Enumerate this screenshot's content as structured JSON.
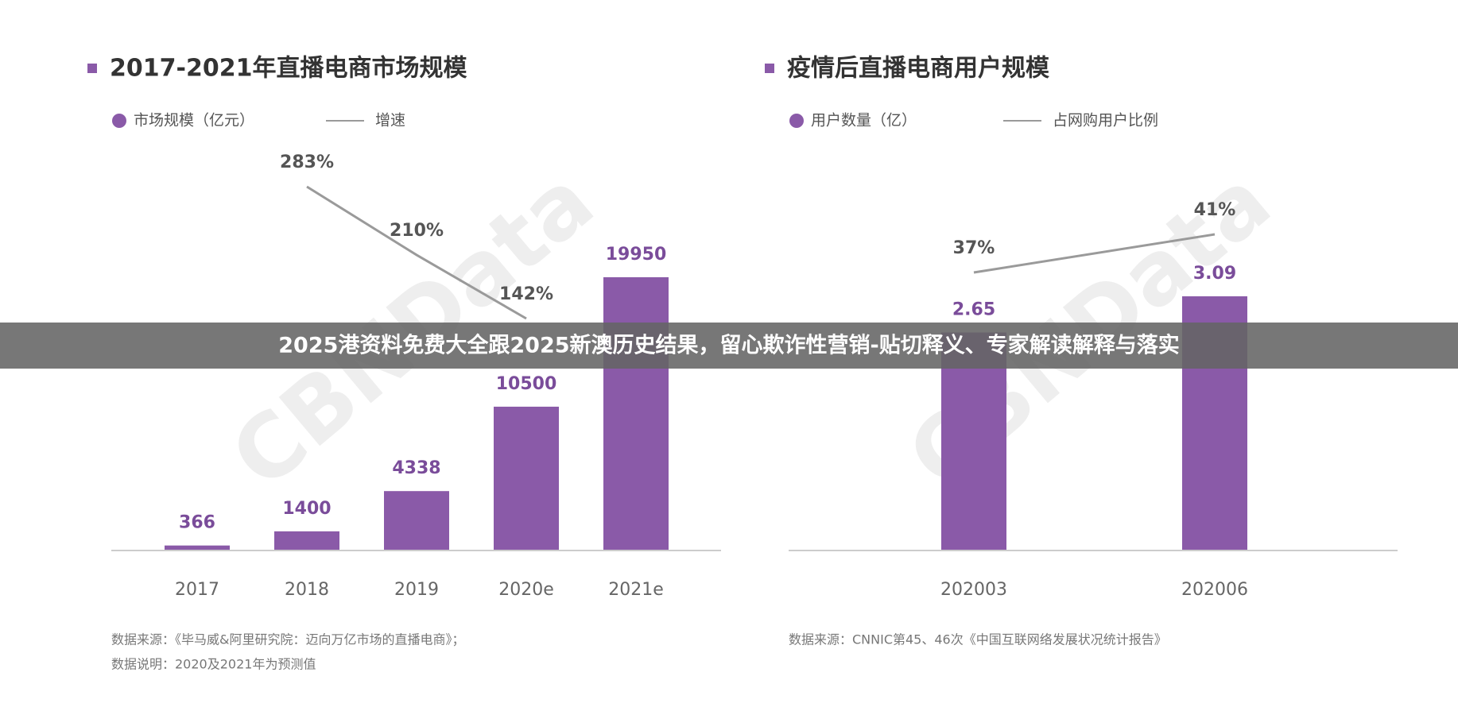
{
  "chart_data": [
    {
      "type": "bar",
      "title": "2017-2021年直播电商市场规模",
      "categories": [
        "2017",
        "2018",
        "2019",
        "2020e",
        "2021e"
      ],
      "series": [
        {
          "name": "市场规模（亿元）",
          "color": "#8a5aa8",
          "values": [
            366,
            1400,
            4338,
            10500,
            19950
          ]
        },
        {
          "name": "增速",
          "type": "line",
          "color": "#9a9a9a",
          "values": [
            null,
            283,
            210,
            142,
            null
          ],
          "value_labels": [
            null,
            "283%",
            "210%",
            "142%",
            null
          ]
        }
      ],
      "watermark": "CBNData",
      "notes": [
        "数据来源：《毕马威&阿里研究院：迈向万亿市场的直播电商》；",
        "数据说明：2020及2021年为预测值"
      ]
    },
    {
      "type": "bar",
      "title": "疫情后直播电商用户规模",
      "categories": [
        "202003",
        "202006"
      ],
      "series": [
        {
          "name": "用户数量（亿）",
          "color": "#8a5aa8",
          "values": [
            2.65,
            3.09
          ]
        },
        {
          "name": "占网购用户比例",
          "type": "line",
          "color": "#9a9a9a",
          "values": [
            37,
            41
          ],
          "value_labels": [
            "37%",
            "41%"
          ]
        }
      ],
      "watermark": "CBNData",
      "notes": [
        "数据来源：CNNIC第45、46次《中国互联网络发展状况统计报告》"
      ]
    }
  ],
  "banner": "2025港资料免费大全跟2025新澳历史结果，留心欺诈性营销-贴切释义、专家解读解释与落实"
}
